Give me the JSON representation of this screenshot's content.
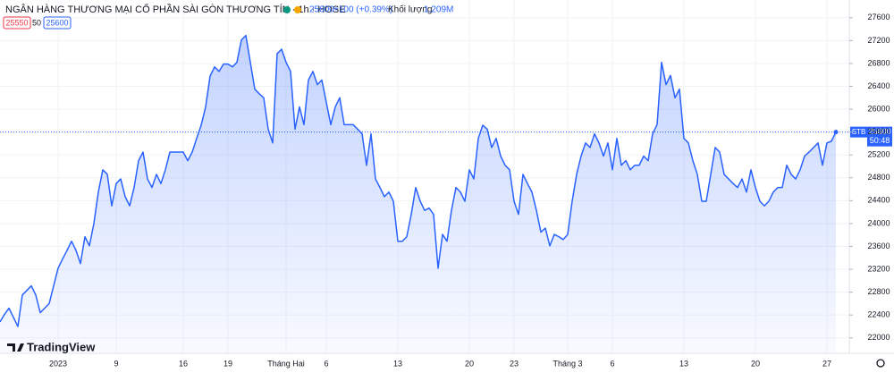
{
  "header": {
    "title": "NGÂN HÀNG THƯƠNG MẠI CỔ PHẦN SÀI GÒN THƯƠNG TÍN · 1h · HOSE",
    "price": "25600",
    "change": "+100 (+0.39%)",
    "volume_label": "Khối lượng",
    "volume": "1.209M",
    "bid": "25550",
    "spread": "50",
    "ask": "25600"
  },
  "price_tag": {
    "countdown": "50:48"
  },
  "logo": "TradingView",
  "chart_data": {
    "type": "area",
    "categories": [
      null,
      null,
      null,
      null,
      null,
      null,
      null,
      null,
      null,
      null,
      null,
      null,
      null,
      "2023",
      null,
      null,
      null,
      null,
      null,
      null,
      null,
      null,
      null,
      null,
      null,
      null,
      "9",
      null,
      null,
      null,
      null,
      null,
      null,
      null,
      null,
      null,
      null,
      null,
      null,
      null,
      null,
      "16",
      null,
      null,
      null,
      null,
      null,
      null,
      null,
      null,
      null,
      "19",
      null,
      null,
      null,
      null,
      null,
      null,
      null,
      null,
      null,
      null,
      null,
      null,
      "Tháng Hai",
      null,
      null,
      null,
      null,
      null,
      null,
      null,
      null,
      "6",
      null,
      null,
      null,
      null,
      null,
      null,
      null,
      null,
      null,
      null,
      null,
      null,
      null,
      null,
      null,
      "13",
      null,
      null,
      null,
      null,
      null,
      null,
      null,
      null,
      null,
      null,
      null,
      null,
      null,
      null,
      null,
      "20",
      null,
      null,
      null,
      null,
      null,
      null,
      null,
      null,
      null,
      "23",
      null,
      null,
      null,
      null,
      null,
      null,
      null,
      null,
      null,
      null,
      null,
      "Tháng 3",
      null,
      null,
      null,
      null,
      null,
      null,
      null,
      null,
      null,
      "6",
      null,
      null,
      null,
      null,
      null,
      null,
      null,
      null,
      null,
      null,
      null,
      null,
      null,
      null,
      null,
      "13",
      null,
      null,
      null,
      null,
      null,
      null,
      null,
      null,
      null,
      null,
      null,
      null,
      null,
      null,
      null,
      "20",
      null,
      null,
      null,
      null,
      null,
      null,
      null,
      null,
      null,
      null,
      null,
      null,
      null,
      null,
      null,
      "27",
      null,
      null
    ],
    "series": [
      {
        "name": "STB",
        "color": "#2962ff",
        "values": [
          22280,
          22410,
          22520,
          22360,
          22200,
          22750,
          22830,
          22910,
          22750,
          22440,
          22520,
          22600,
          22910,
          23220,
          23380,
          23530,
          23690,
          23530,
          23300,
          23770,
          23610,
          24000,
          24550,
          24940,
          24860,
          24310,
          24700,
          24780,
          24470,
          24310,
          24630,
          25100,
          25250,
          24780,
          24630,
          24860,
          24700,
          24940,
          25250,
          25250,
          25250,
          25250,
          25100,
          25250,
          25490,
          25720,
          26040,
          26580,
          26740,
          26660,
          26790,
          26790,
          26740,
          26820,
          27210,
          27290,
          26820,
          26350,
          26270,
          26200,
          25650,
          25410,
          26970,
          27050,
          26820,
          26660,
          25650,
          26040,
          25730,
          26510,
          26660,
          26430,
          26510,
          26120,
          25730,
          26040,
          26200,
          25730,
          25730,
          25730,
          25650,
          25570,
          25020,
          25570,
          24780,
          24630,
          24470,
          24550,
          24390,
          23690,
          23690,
          23770,
          24160,
          24630,
          24390,
          24230,
          24270,
          24160,
          23220,
          23810,
          23690,
          24230,
          24630,
          24550,
          24390,
          24940,
          24780,
          25490,
          25720,
          25650,
          25330,
          25490,
          25180,
          25020,
          24940,
          24390,
          24160,
          24860,
          24700,
          24550,
          24230,
          23850,
          23920,
          23610,
          23810,
          23770,
          23720,
          23810,
          24390,
          24860,
          25180,
          25410,
          25330,
          25570,
          25410,
          25180,
          25410,
          24940,
          25490,
          25020,
          25100,
          24940,
          25020,
          25020,
          25180,
          25100,
          25570,
          25730,
          26820,
          26430,
          26590,
          26200,
          26350,
          25490,
          25410,
          25100,
          24860,
          24390,
          24390,
          24860,
          25330,
          25250,
          24860,
          24780,
          24700,
          24630,
          24780,
          24550,
          24940,
          24630,
          24390,
          24310,
          24390,
          24550,
          24630,
          24630,
          25020,
          24860,
          24780,
          24940,
          25180,
          25250,
          25330,
          25410,
          25020,
          25410,
          25440,
          25600
        ]
      }
    ],
    "ylim": [
      21730,
      27910
    ],
    "yticks": [
      22000,
      22400,
      22800,
      23200,
      23600,
      24000,
      24400,
      24800,
      25200,
      25600,
      26000,
      26400,
      26800,
      27200,
      27600
    ],
    "grid": true
  }
}
